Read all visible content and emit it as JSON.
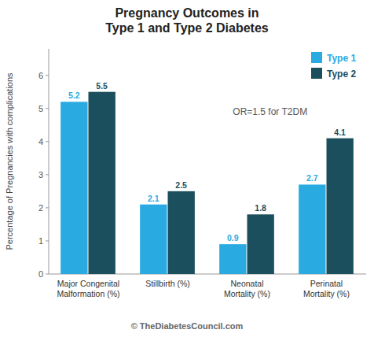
{
  "chart_data": {
    "type": "bar",
    "title": "Pregnancy Outcomes in\nType 1 and Type 2 Diabetes",
    "categories": [
      "Major Congenital\nMalformation (%)",
      "Stillbirth (%)",
      "Neonatal\nMortality (%)",
      "Perinatal\nMortality (%)"
    ],
    "series": [
      {
        "name": "Type 1",
        "color": "#29ABE2",
        "values": [
          5.2,
          2.1,
          0.9,
          2.7
        ]
      },
      {
        "name": "Type 2",
        "color": "#1B4F5E",
        "values": [
          5.5,
          2.5,
          1.8,
          4.1
        ]
      }
    ],
    "ylabel": "Percentage of Pregnancies with complications",
    "ylim": [
      0,
      6.8
    ],
    "yticks": [
      0,
      1,
      2,
      3,
      4,
      5,
      6
    ],
    "annotations": [
      "OR=1.5 for T2DM",
      "© TheDiabetesCouncil.com"
    ],
    "grid": false,
    "legend": "upper right",
    "data_labels": true
  }
}
